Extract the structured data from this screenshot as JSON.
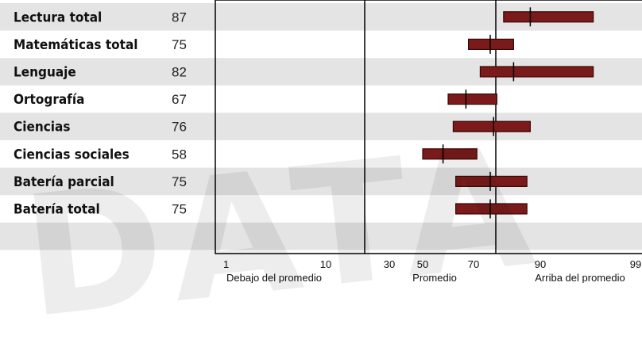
{
  "chart_data": {
    "type": "bar",
    "subtype": "percentile-band",
    "categories": [
      "Lectura total",
      "Matemáticas total",
      "Lenguaje",
      "Ortografía",
      "Ciencias",
      "Ciencias sociales",
      "Batería parcial",
      "Batería total"
    ],
    "values": [
      87,
      75,
      82,
      67,
      76,
      58,
      75,
      75
    ],
    "bands": [
      [
        79,
        95
      ],
      [
        68,
        82
      ],
      [
        72,
        95
      ],
      [
        60,
        77
      ],
      [
        62,
        87
      ],
      [
        50,
        71
      ],
      [
        63,
        86
      ],
      [
        63,
        86
      ]
    ],
    "x_ticks": [
      "1",
      "10",
      "30",
      "50",
      "70",
      "90",
      "99"
    ],
    "x_categories": [
      "Debajo del promedio",
      "Promedio",
      "Arriba del promedio"
    ],
    "average_line": 76,
    "colors": {
      "bar": "#7a1a1a",
      "bar_stroke": "#3a0808",
      "row_alt": "#e4e4e4"
    }
  },
  "watermark": "DATA"
}
